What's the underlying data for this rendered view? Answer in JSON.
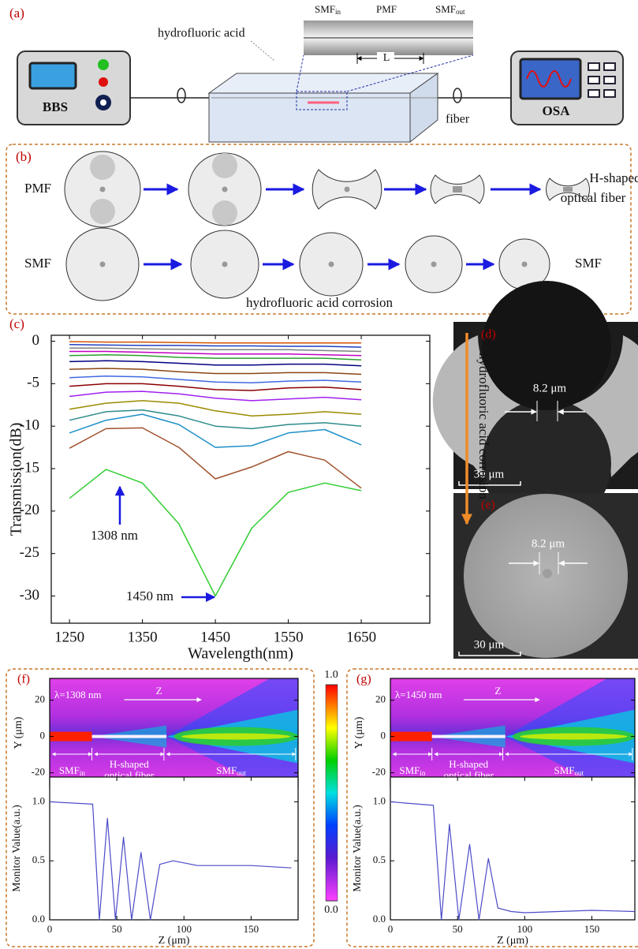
{
  "panel_a": {
    "label": "(a)",
    "acid": "hydrofluoric acid",
    "smf_in": [
      "SMF",
      "in"
    ],
    "pmf": "PMF",
    "smf_out": [
      "SMF",
      "out"
    ],
    "length": "L",
    "source": "BBS",
    "analyzer": "OSA",
    "fiber": "fiber"
  },
  "panel_b": {
    "label": "(b)",
    "pmf": "PMF",
    "h_line1": "H-shaped",
    "h_line2": "optical fiber",
    "smf_left": "SMF",
    "smf_right": "SMF",
    "caption": "hydrofluoric acid corrosion"
  },
  "panel_d": {
    "label": "(d)",
    "core": "8.2 μm",
    "scale": "30 μm"
  },
  "panel_e": {
    "label": "(e)",
    "core": "8.2 μm",
    "scale": "30 μm"
  },
  "colorbar": {
    "ticks": [
      {
        "value": 1,
        "label": "1.0"
      },
      {
        "value": 0,
        "label": "0.0"
      }
    ]
  },
  "chart_data": [
    {
      "type": "line",
      "panel": "(c)",
      "x": [
        1250,
        1300,
        1350,
        1400,
        1450,
        1500,
        1550,
        1600,
        1650
      ],
      "series": [
        {
          "color": "#d35400",
          "values": [
            -0.05,
            -0.1,
            -0.1,
            -0.15,
            -0.2,
            -0.2,
            -0.2,
            -0.2,
            -0.2
          ]
        },
        {
          "color": "#1f3fbf",
          "values": [
            -0.4,
            -0.45,
            -0.5,
            -0.5,
            -0.55,
            -0.55,
            -0.6,
            -0.6,
            -0.7
          ]
        },
        {
          "color": "#808080",
          "values": [
            -0.8,
            -0.8,
            -0.9,
            -0.95,
            -1.0,
            -1.0,
            -1.0,
            -1.1,
            -1.2
          ]
        },
        {
          "color": "#c000c0",
          "values": [
            -1.2,
            -1.2,
            -1.3,
            -1.4,
            -1.5,
            -1.5,
            -1.5,
            -1.6,
            -1.7
          ]
        },
        {
          "color": "#2ca02c",
          "values": [
            -1.7,
            -1.6,
            -1.7,
            -1.9,
            -2.0,
            -2.0,
            -2.0,
            -2.0,
            -2.2
          ]
        },
        {
          "color": "#000080",
          "values": [
            -2.4,
            -2.3,
            -2.4,
            -2.6,
            -2.8,
            -2.8,
            -2.7,
            -2.7,
            -2.9
          ]
        },
        {
          "color": "#8b4513",
          "values": [
            -3.3,
            -3.2,
            -3.3,
            -3.6,
            -3.8,
            -3.8,
            -3.7,
            -3.7,
            -3.9
          ]
        },
        {
          "color": "#4169e1",
          "values": [
            -4.3,
            -4.1,
            -4.2,
            -4.5,
            -4.8,
            -4.9,
            -4.7,
            -4.6,
            -4.8
          ]
        },
        {
          "color": "#8b0000",
          "values": [
            -5.3,
            -5.0,
            -5.0,
            -5.3,
            -5.7,
            -5.8,
            -5.5,
            -5.4,
            -5.7
          ]
        },
        {
          "color": "#a020f0",
          "values": [
            -6.5,
            -6.0,
            -5.9,
            -6.2,
            -6.7,
            -7.0,
            -6.8,
            -6.6,
            -6.9
          ]
        },
        {
          "color": "#9a8b00",
          "values": [
            -8.0,
            -7.3,
            -7.0,
            -7.3,
            -8.2,
            -8.8,
            -8.6,
            -8.3,
            -8.6
          ]
        },
        {
          "color": "#2e8b8b",
          "values": [
            -9.3,
            -8.3,
            -8.1,
            -8.8,
            -10.0,
            -10.3,
            -9.8,
            -9.6,
            -10.0
          ]
        },
        {
          "color": "#1e90c8",
          "values": [
            -10.8,
            -9.3,
            -8.6,
            -9.8,
            -12.5,
            -12.3,
            -10.8,
            -10.4,
            -12.2
          ]
        },
        {
          "color": "#a0522d",
          "values": [
            -12.6,
            -10.3,
            -10.2,
            -12.5,
            -16.2,
            -14.8,
            -13.0,
            -14.0,
            -17.3
          ]
        },
        {
          "color": "#32cd32",
          "values": [
            -18.5,
            -15.1,
            -16.7,
            -21.5,
            -30.0,
            -22.0,
            -17.8,
            -16.7,
            -17.6
          ]
        }
      ],
      "xlim": [
        1225,
        1744
      ],
      "xticks": [
        1250,
        1350,
        1450,
        1550,
        1650
      ],
      "ylim": [
        -33.2,
        0.7
      ],
      "yticks": [
        0,
        -5,
        -10,
        -15,
        -20,
        -25,
        -30
      ],
      "x_label": "Wavelength(nm)",
      "y_label": "Transmission(dB)",
      "annotations": [
        "1308 nm",
        "1450 nm",
        "hydrofluoric acid corrosion"
      ]
    },
    {
      "type": "heatmap",
      "panel": "(f)",
      "ylim": [
        -28,
        32
      ],
      "yticks": [
        20,
        0,
        -20
      ],
      "y_label": "Y (μm)",
      "wavelength": "λ=1308 nm",
      "direction": "Z",
      "sections": [
        [
          "SMF",
          "in"
        ],
        [
          "H-shaped",
          "optical fiber"
        ],
        [
          "SMF",
          "out"
        ]
      ]
    },
    {
      "type": "line",
      "x": [
        0,
        32,
        37,
        43,
        49,
        55,
        61,
        68,
        75,
        82,
        92,
        110,
        150,
        180
      ],
      "series": [
        {
          "color": "#4b4bc8",
          "values": [
            1.0,
            0.98,
            0.0,
            0.86,
            0.0,
            0.7,
            0.0,
            0.57,
            0.0,
            0.47,
            0.5,
            0.46,
            0.46,
            0.44
          ]
        }
      ],
      "xlim": [
        0,
        185
      ],
      "xticks": [
        0,
        50,
        100,
        150
      ],
      "ylim": [
        0,
        1.21
      ],
      "yticks": [
        {
          "value": 0,
          "label": "0.0"
        },
        {
          "value": 0.5,
          "label": "0.5"
        },
        {
          "value": 1,
          "label": "1.0"
        }
      ],
      "x_label": "Z (μm)",
      "y_label": "Monitor Value(a.u.)"
    },
    {
      "type": "heatmap",
      "panel": "(g)",
      "ylim": [
        -28,
        32
      ],
      "yticks": [
        20,
        0,
        -20
      ],
      "y_label": "Y (μm)",
      "wavelength": "λ=1450 nm",
      "direction": "Z",
      "sections": [
        [
          "SMF",
          "in"
        ],
        [
          "H-shaped",
          "optical fiber"
        ],
        [
          "SMF",
          "out"
        ]
      ]
    },
    {
      "type": "line",
      "x": [
        0,
        32,
        38,
        44,
        51,
        59,
        66,
        73,
        80,
        90,
        100,
        150,
        182
      ],
      "series": [
        {
          "color": "#4b4bc8",
          "values": [
            1.0,
            0.97,
            0.0,
            0.81,
            0.0,
            0.64,
            0.0,
            0.52,
            0.1,
            0.07,
            0.06,
            0.08,
            0.07
          ]
        }
      ],
      "xlim": [
        0,
        182
      ],
      "xticks": [
        0,
        50,
        100,
        150
      ],
      "ylim": [
        0,
        1.21
      ],
      "yticks": [
        {
          "value": 0,
          "label": "0.0"
        },
        {
          "value": 0.5,
          "label": "0.5"
        },
        {
          "value": 1,
          "label": "1.0"
        }
      ],
      "x_label": "Z (μm)",
      "y_label": "Monitor Value(a.u.)"
    }
  ]
}
